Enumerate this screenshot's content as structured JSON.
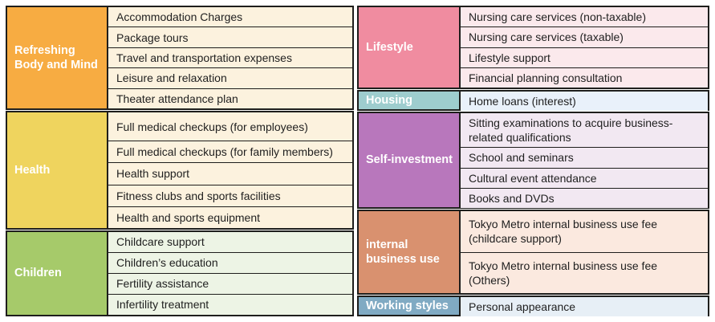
{
  "table": {
    "border_color": "#1e1e1c",
    "text_color": "#1f1f1f",
    "header_text_color": "#ffffff",
    "left_blocks": [
      {
        "category": "Refreshing Body and Mind",
        "header_bg": "#F7AC42",
        "item_bg": "#FCF2DE",
        "items": [
          "Accommodation Charges",
          "Package tours",
          "Travel and transportation expenses",
          "Leisure and relaxation",
          "Theater attendance plan"
        ]
      },
      {
        "category": "Health",
        "header_bg": "#EFD45E",
        "item_bg": "#FCF2DE",
        "items": [
          "Full medical checkups (for employees)",
          "Full medical checkups (for family members)",
          "Health support",
          "Fitness clubs and sports facilities",
          "Health and sports equipment"
        ]
      },
      {
        "category": "Children",
        "header_bg": "#A6CA6A",
        "item_bg": "#EDF4E5",
        "items": [
          "Childcare support",
          "Children’s education",
          "Fertility assistance",
          "Infertility treatment"
        ]
      }
    ],
    "right_blocks": [
      {
        "category": "Lifestyle",
        "header_bg": "#F08CA0",
        "item_bg": "#FBE9EC",
        "items": [
          "Nursing care services (non-taxable)",
          "Nursing care services (taxable)",
          "Lifestyle support",
          "Financial planning consultation"
        ]
      },
      {
        "category": "Housing",
        "header_bg": "#9ECDCE",
        "item_bg": "#E9F1FA",
        "items": [
          "Home loans (interest)"
        ]
      },
      {
        "category": "Self-investment",
        "header_bg": "#B877BC",
        "item_bg": "#F2E8F2",
        "items": [
          "Sitting examinations to acquire business-related qualifications",
          "School and seminars",
          "Cultural event attendance",
          "Books and DVDs"
        ]
      },
      {
        "category": "internal business use",
        "header_bg": "#D9916F",
        "item_bg": "#FBE9DF",
        "items": [
          "Tokyo Metro internal business use fee (childcare support)",
          "Tokyo Metro internal business use fee (Others)"
        ]
      },
      {
        "category": "Working styles",
        "header_bg": "#80AAC3",
        "item_bg": "#E7EFF6",
        "items": [
          "Personal appearance"
        ]
      }
    ]
  }
}
